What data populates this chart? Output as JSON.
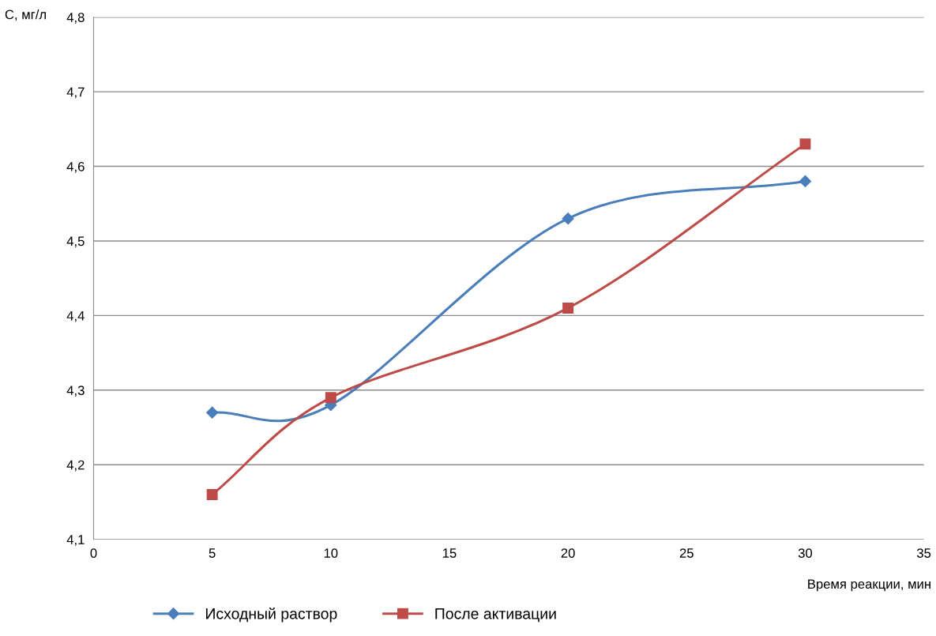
{
  "chart_data": {
    "type": "line",
    "xlabel": "Время реакции, мин",
    "ylabel": "С, мг/л",
    "x": [
      5,
      10,
      20,
      30
    ],
    "series": [
      {
        "name": "Исходный раствор",
        "color": "#4a7ebb",
        "marker": "diamond",
        "values": [
          4.27,
          4.28,
          4.53,
          4.58
        ]
      },
      {
        "name": "После активации",
        "color": "#be4b48",
        "marker": "square",
        "values": [
          4.16,
          4.29,
          4.41,
          4.63
        ]
      }
    ],
    "xlim": [
      0,
      35
    ],
    "xticks": [
      0,
      5,
      10,
      15,
      20,
      25,
      30,
      35
    ],
    "ylim": [
      4.1,
      4.8
    ],
    "yticks": [
      {
        "value": 4.1,
        "label": "4,1"
      },
      {
        "value": 4.2,
        "label": "4,2"
      },
      {
        "value": 4.3,
        "label": "4,3"
      },
      {
        "value": 4.4,
        "label": "4,4"
      },
      {
        "value": 4.5,
        "label": "4,5"
      },
      {
        "value": 4.6,
        "label": "4,6"
      },
      {
        "value": 4.7,
        "label": "4,7"
      },
      {
        "value": 4.8,
        "label": "4,8"
      }
    ],
    "grid": "y",
    "legend": "bottom",
    "line_style": "solid"
  }
}
